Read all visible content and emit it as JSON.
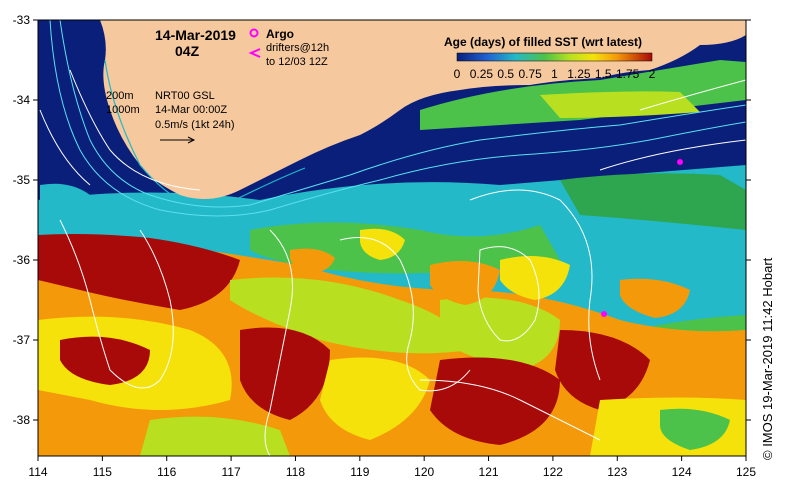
{
  "map": {
    "date_line": "14-Mar-2019",
    "time_line": "04Z",
    "argo_label": "Argo",
    "drifters_line1": "drifters@12h",
    "drifters_line2": "to 12/03 12Z",
    "depth_200": "200m",
    "depth_1000": "1000m",
    "product_line1": "NRT00 GSL",
    "product_line2": "14-Mar 00:00Z",
    "scale_label": "0.5m/s (1kt 24h)",
    "credit": "© IMOS 19-Mar-2019 11:42 Hobart",
    "colors": {
      "land": "#f6c89e",
      "ocean_deep": "#0a1f7a",
      "cyan": "#23b9c8",
      "green": "#4cc24a",
      "yellowgreen": "#b8e020",
      "yellow": "#f4e20a",
      "orange": "#f49a0a",
      "darkred": "#a80a0a",
      "contour": "#ffffff",
      "argo": "#ff00ff"
    }
  },
  "colorbar": {
    "title": "Age (days) of filled SST (wrt latest)",
    "tick_labels": [
      "0",
      "0.25",
      "0.5",
      "0.75",
      "1",
      "1.25",
      "1.5",
      "1.75",
      "2"
    ],
    "range": [
      0,
      2
    ]
  },
  "axes": {
    "x_ticks": [
      "114",
      "115",
      "116",
      "117",
      "118",
      "119",
      "120",
      "121",
      "122",
      "123",
      "124",
      "125"
    ],
    "y_ticks": [
      "-33",
      "-34",
      "-35",
      "-36",
      "-37",
      "-38"
    ]
  }
}
